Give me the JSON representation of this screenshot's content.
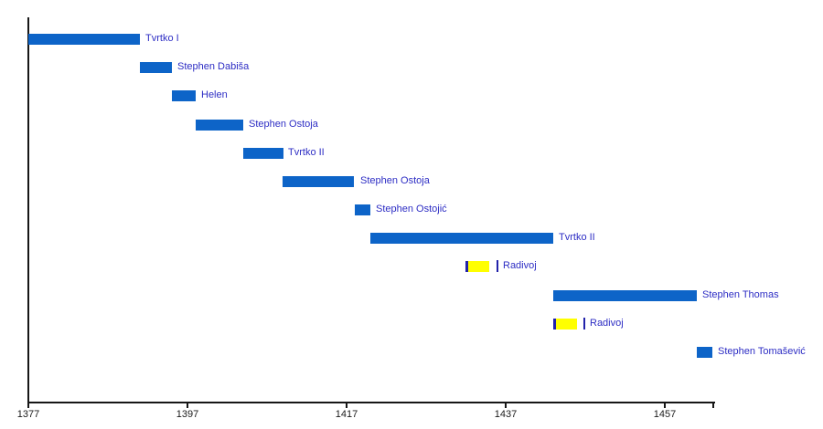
{
  "chart_data": {
    "type": "timeline-gantt",
    "title": "",
    "xlabel": "",
    "ylabel": "",
    "legend_position": "none",
    "grid": false,
    "axis": {
      "start_year": 1377,
      "end_year": 1463,
      "tick_labels": [
        "1377",
        "1397",
        "1417",
        "1437",
        "1457"
      ],
      "tick_years": [
        1377,
        1397,
        1417,
        1437,
        1457
      ]
    },
    "colors": {
      "reign_bar": "#0d64c8",
      "rival_bar": "#ffff00",
      "rival_bar_edge": "#2222aa",
      "label_text": "#2d2dc4",
      "axis": "#161616",
      "background": "#ffffff"
    },
    "rows": [
      {
        "label": "Tvrtko I",
        "start": 1377,
        "end": 1391,
        "type": "king"
      },
      {
        "label": "Stephen Dabiša",
        "start": 1391,
        "end": 1395,
        "type": "king"
      },
      {
        "label": "Helen",
        "start": 1395,
        "end": 1398,
        "type": "king"
      },
      {
        "label": "Stephen Ostoja",
        "start": 1398,
        "end": 1404,
        "type": "king"
      },
      {
        "label": "Tvrtko II",
        "start": 1404,
        "end": 1409,
        "type": "king"
      },
      {
        "label": "Stephen Ostoja",
        "start": 1409,
        "end": 1418,
        "type": "king"
      },
      {
        "label": "Stephen Ostojić",
        "start": 1418,
        "end": 1420,
        "type": "king"
      },
      {
        "label": "Tvrtko II",
        "start": 1420,
        "end": 1443,
        "type": "king"
      },
      {
        "label": "Radivoj",
        "start": 1432,
        "end": 1435,
        "type": "rival"
      },
      {
        "label": "Stephen Thomas",
        "start": 1443,
        "end": 1461,
        "type": "king"
      },
      {
        "label": "Radivoj",
        "start": 1443,
        "end": 1446,
        "type": "rival"
      },
      {
        "label": "Stephen Tomašević",
        "start": 1461,
        "end": 1463,
        "type": "king"
      }
    ]
  }
}
